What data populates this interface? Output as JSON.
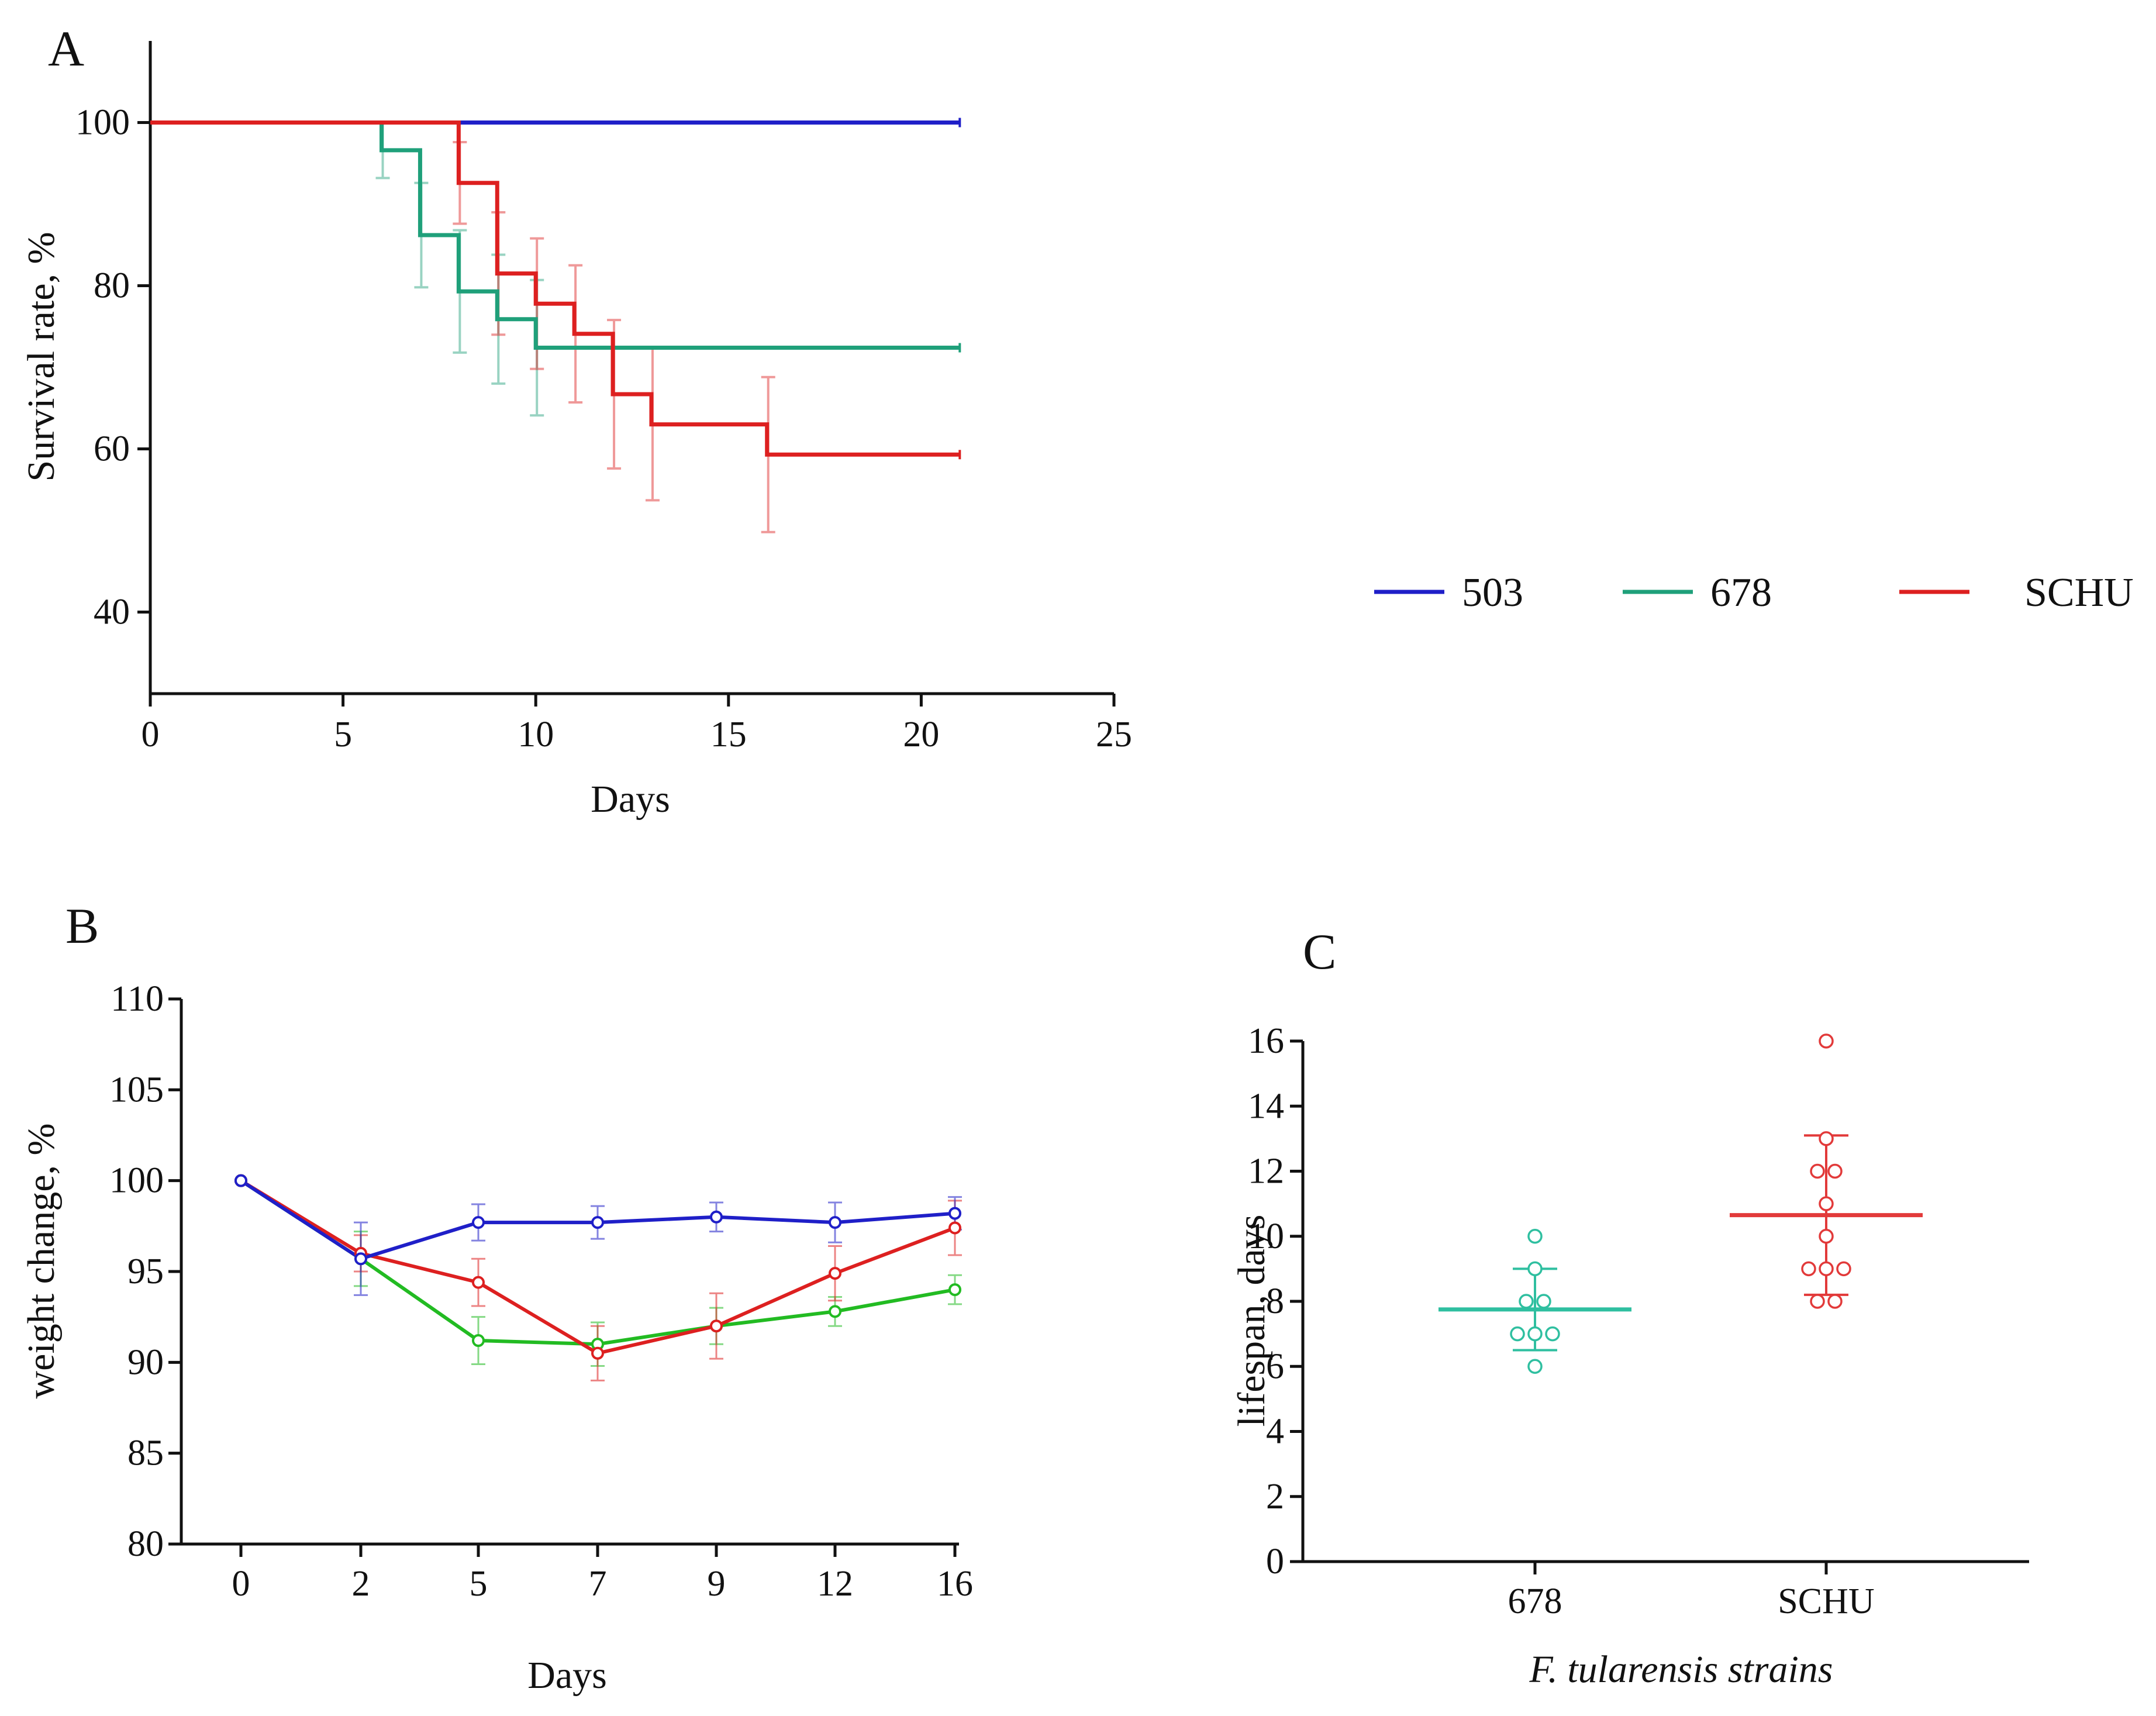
{
  "colors": {
    "503": "#1f1fc8",
    "678": "#1fa07a",
    "SCHU": "#dd2020",
    "678_B": "#22bb22",
    "678_C": "#2fbfa0",
    "SCHU_C": "#e23a3a",
    "axis": "#111111"
  },
  "legend": {
    "entries": [
      {
        "key": "503",
        "label": "503"
      },
      {
        "key": "678",
        "label": "678"
      },
      {
        "key": "SCHU",
        "label": "SCHU"
      }
    ]
  },
  "chart_data": [
    {
      "panel": "A",
      "type": "line",
      "step": true,
      "xlabel": "Days",
      "ylabel": "Survival rate, %",
      "xlim": [
        0,
        25
      ],
      "ylim": [
        30,
        110
      ],
      "x_ticks": [
        "0",
        "5",
        "10",
        "15",
        "20",
        "25"
      ],
      "y_ticks": [
        "40",
        "60",
        "80",
        "100"
      ],
      "series": [
        {
          "name": "503",
          "points": [
            [
              0,
              100
            ],
            [
              21,
              100
            ]
          ],
          "errors": []
        },
        {
          "name": "678",
          "points": [
            [
              0,
              100
            ],
            [
              6,
              100
            ],
            [
              6,
              96.6
            ],
            [
              7,
              96.6
            ],
            [
              7,
              86.2
            ],
            [
              8,
              86.2
            ],
            [
              8,
              79.3
            ],
            [
              9,
              79.3
            ],
            [
              9,
              75.9
            ],
            [
              10,
              75.9
            ],
            [
              10,
              72.4
            ],
            [
              21,
              72.4
            ]
          ],
          "errors": [
            [
              6,
              96.6,
              3.4
            ],
            [
              7,
              86.2,
              6.4
            ],
            [
              8,
              79.3,
              7.5
            ],
            [
              9,
              75.9,
              7.9
            ],
            [
              10,
              72.4,
              8.3
            ]
          ]
        },
        {
          "name": "SCHU",
          "points": [
            [
              0,
              100
            ],
            [
              8,
              100
            ],
            [
              8,
              92.6
            ],
            [
              9,
              92.6
            ],
            [
              9,
              81.5
            ],
            [
              10,
              81.5
            ],
            [
              10,
              77.8
            ],
            [
              11,
              77.8
            ],
            [
              11,
              74.1
            ],
            [
              12,
              74.1
            ],
            [
              12,
              66.7
            ],
            [
              13,
              66.7
            ],
            [
              13,
              63.0
            ],
            [
              16,
              63.0
            ],
            [
              16,
              59.3
            ],
            [
              21,
              59.3
            ]
          ],
          "errors": [
            [
              8,
              92.6,
              5.0
            ],
            [
              9,
              81.5,
              7.5
            ],
            [
              10,
              77.8,
              8.0
            ],
            [
              11,
              74.1,
              8.4
            ],
            [
              12,
              66.7,
              9.1
            ],
            [
              13,
              63.0,
              9.3
            ],
            [
              16,
              59.3,
              9.5
            ]
          ]
        }
      ]
    },
    {
      "panel": "B",
      "type": "line",
      "xlabel": "Days",
      "ylabel": "weight change, %",
      "categories": [
        "0",
        "2",
        "5",
        "7",
        "9",
        "12",
        "16"
      ],
      "ylim": [
        80,
        110
      ],
      "y_ticks": [
        "80",
        "85",
        "90",
        "95",
        "100",
        "105",
        "110"
      ],
      "series": [
        {
          "name": "503",
          "values": [
            100,
            95.7,
            97.7,
            97.7,
            98.0,
            97.7,
            98.2
          ],
          "errors": [
            0,
            2.0,
            1.0,
            0.9,
            0.8,
            1.1,
            0.9
          ]
        },
        {
          "name": "678",
          "values": [
            100,
            95.7,
            91.2,
            91.0,
            92.0,
            92.8,
            94.0
          ],
          "errors": [
            0,
            1.5,
            1.3,
            1.2,
            1.0,
            0.8,
            0.8
          ]
        },
        {
          "name": "SCHU",
          "values": [
            100,
            96.0,
            94.4,
            90.5,
            92.0,
            94.9,
            97.4
          ],
          "errors": [
            0,
            1.0,
            1.3,
            1.5,
            1.8,
            1.5,
            1.5
          ]
        }
      ]
    },
    {
      "panel": "C",
      "type": "scatter",
      "xlabel": "F. tularensis strains",
      "ylabel": "lifespan, days",
      "categories": [
        "678",
        "SCHU"
      ],
      "ylim": [
        0,
        16
      ],
      "y_ticks": [
        "0",
        "2",
        "4",
        "6",
        "8",
        "10",
        "12",
        "14",
        "16"
      ],
      "groups": [
        {
          "name": "678",
          "points": [
            6,
            7,
            7,
            7,
            8,
            8,
            9,
            10
          ],
          "mean": 7.75,
          "sd_low": 6.5,
          "sd_high": 9.0
        },
        {
          "name": "SCHU",
          "points": [
            8,
            8,
            9,
            9,
            9,
            10,
            11,
            12,
            12,
            13,
            16
          ],
          "mean": 10.65,
          "sd_low": 8.2,
          "sd_high": 13.1
        }
      ]
    }
  ]
}
